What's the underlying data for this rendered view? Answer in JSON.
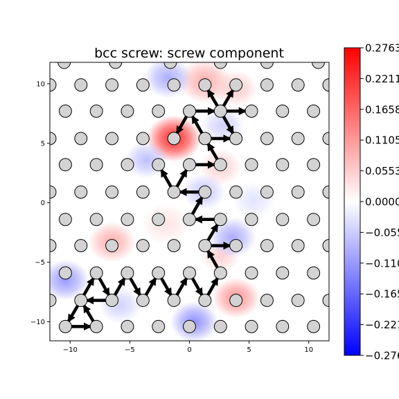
{
  "chart_data": {
    "type": "heatmap",
    "title": "bcc screw: screw component",
    "xlabel": "",
    "ylabel": "",
    "xlim": [
      -11.7,
      11.7
    ],
    "ylim": [
      -11.6,
      11.8
    ],
    "x_ticks": [
      -10,
      -5,
      0,
      5,
      10
    ],
    "y_ticks": [
      -10,
      -5,
      0,
      5,
      10
    ],
    "grid": false,
    "colorbar": {
      "cmap": "bwr",
      "range": [
        -0.2763,
        0.2763
      ],
      "tick_values": [
        0.2763,
        0.2211,
        0.1658,
        0.1105,
        0.0553,
        0.0,
        -0.0553,
        -0.1105,
        -0.1658,
        -0.2211,
        -0.2763
      ],
      "tick_labels": [
        "0.2763",
        "0.2211",
        "0.1658",
        "0.1105",
        "0.0553",
        "0.0000",
        "-0.055",
        "-0.110",
        "-0.165",
        "-0.221",
        "-0.276"
      ],
      "colors": {
        "max": "#ff0000",
        "mid": "#ffffff",
        "min": "#0000ff"
      }
    },
    "atoms": {
      "face_color": "#d3d3d3",
      "edge_color": "#000000",
      "rows": [
        {
          "y": 11.8,
          "x": [
            -10.5,
            -6.2,
            -1.6,
            2.6,
            6.5,
            10.8
          ]
        },
        {
          "y": 9.9,
          "x": [
            -11.7,
            -9.1,
            -6.5,
            -3.9,
            -1.3,
            1.3,
            3.9,
            6.5,
            9.1,
            11.7
          ]
        },
        {
          "y": 7.7,
          "x": [
            -10.4,
            -7.8,
            -5.2,
            -2.6,
            0.0,
            2.6,
            5.2,
            7.8,
            10.4
          ]
        },
        {
          "y": 5.4,
          "x": [
            -11.7,
            -9.1,
            -6.5,
            -3.9,
            -1.3,
            1.3,
            3.9,
            6.5,
            9.1,
            11.7
          ]
        },
        {
          "y": 3.2,
          "x": [
            -10.4,
            -7.8,
            -5.2,
            -2.6,
            0.0,
            2.6,
            5.2,
            7.8,
            10.4
          ]
        },
        {
          "y": 0.9,
          "x": [
            -11.7,
            -9.1,
            -6.5,
            -3.9,
            -1.3,
            1.3,
            3.9,
            6.5,
            9.1,
            11.7
          ]
        },
        {
          "y": -1.4,
          "x": [
            -10.4,
            -7.8,
            -5.2,
            -2.6,
            0.0,
            2.6,
            5.2,
            7.8,
            10.4
          ]
        },
        {
          "y": -3.6,
          "x": [
            -11.7,
            -9.1,
            -6.5,
            -3.9,
            -1.3,
            1.3,
            3.9,
            6.5,
            9.1,
            11.7
          ]
        },
        {
          "y": -5.9,
          "x": [
            -10.4,
            -7.8,
            -5.2,
            -2.6,
            0.0,
            2.6,
            5.2,
            7.8,
            10.4
          ]
        },
        {
          "y": -8.2,
          "x": [
            -11.7,
            -9.1,
            -6.5,
            -3.9,
            -1.3,
            1.3,
            3.9,
            6.5,
            9.1,
            11.7
          ]
        },
        {
          "y": -10.4,
          "x": [
            -10.4,
            -7.8,
            -5.2,
            -2.6,
            0.0,
            2.6,
            5.2,
            7.8,
            10.4
          ]
        }
      ]
    },
    "color_blobs": [
      {
        "x": -1.3,
        "y": 5.4,
        "value": 0.24,
        "r": 2.3
      },
      {
        "x": 1.3,
        "y": 10.2,
        "value": 0.09,
        "r": 2.2
      },
      {
        "x": 3.9,
        "y": 9.6,
        "value": 0.06,
        "r": 1.8
      },
      {
        "x": 2.6,
        "y": 3.0,
        "value": 0.05,
        "r": 1.8
      },
      {
        "x": -6.5,
        "y": -3.3,
        "value": 0.09,
        "r": 2.0
      },
      {
        "x": 3.9,
        "y": -8.0,
        "value": 0.12,
        "r": 2.0
      },
      {
        "x": 2.6,
        "y": -4.5,
        "value": 0.05,
        "r": 1.6
      },
      {
        "x": -2.0,
        "y": -1.8,
        "value": 0.03,
        "r": 2.0
      },
      {
        "x": -1.8,
        "y": 10.5,
        "value": -0.09,
        "r": 2.0
      },
      {
        "x": 2.8,
        "y": 6.5,
        "value": -0.05,
        "r": 1.8
      },
      {
        "x": -3.6,
        "y": 3.6,
        "value": -0.07,
        "r": 1.8
      },
      {
        "x": 1.2,
        "y": 0.9,
        "value": -0.06,
        "r": 1.8
      },
      {
        "x": 3.6,
        "y": -2.9,
        "value": -0.09,
        "r": 2.0
      },
      {
        "x": -10.4,
        "y": -6.5,
        "value": -0.11,
        "r": 2.0
      },
      {
        "x": 0.4,
        "y": -10.0,
        "value": -0.12,
        "r": 2.0
      },
      {
        "x": -5.8,
        "y": -8.6,
        "value": -0.05,
        "r": 1.8
      },
      {
        "x": 5.4,
        "y": 0.2,
        "value": -0.03,
        "r": 1.8
      }
    ],
    "arrows": [
      {
        "from": [
          -10.4,
          -10.4
        ],
        "to": [
          -7.8,
          -10.4
        ]
      },
      {
        "from": [
          -7.8,
          -10.4
        ],
        "to": [
          -9.1,
          -8.2
        ]
      },
      {
        "from": [
          -9.1,
          -8.2
        ],
        "to": [
          -7.8,
          -5.9
        ]
      },
      {
        "from": [
          -6.5,
          -8.2
        ],
        "to": [
          -9.1,
          -8.2
        ]
      },
      {
        "from": [
          -7.8,
          -5.9
        ],
        "to": [
          -6.5,
          -8.2
        ]
      },
      {
        "from": [
          -6.5,
          -8.2
        ],
        "to": [
          -5.2,
          -5.9
        ]
      },
      {
        "from": [
          -5.2,
          -5.9
        ],
        "to": [
          -3.9,
          -8.2
        ]
      },
      {
        "from": [
          -3.9,
          -8.2
        ],
        "to": [
          -2.6,
          -5.9
        ]
      },
      {
        "from": [
          -2.6,
          -5.9
        ],
        "to": [
          -1.3,
          -8.2
        ]
      },
      {
        "from": [
          -1.3,
          -8.2
        ],
        "to": [
          0.0,
          -5.9
        ]
      },
      {
        "from": [
          0.0,
          -5.9
        ],
        "to": [
          1.3,
          -8.2
        ]
      },
      {
        "from": [
          1.3,
          -8.2
        ],
        "to": [
          2.6,
          -5.9
        ]
      },
      {
        "from": [
          2.6,
          -5.9
        ],
        "to": [
          1.3,
          -3.6
        ]
      },
      {
        "from": [
          1.3,
          -3.6
        ],
        "to": [
          3.9,
          -3.6
        ]
      },
      {
        "from": [
          1.3,
          -3.6
        ],
        "to": [
          2.6,
          -1.4
        ]
      },
      {
        "from": [
          2.6,
          -1.4
        ],
        "to": [
          0.0,
          -1.4
        ]
      },
      {
        "from": [
          0.0,
          -1.4
        ],
        "to": [
          1.3,
          0.9
        ]
      },
      {
        "from": [
          1.3,
          0.9
        ],
        "to": [
          -1.3,
          0.9
        ]
      },
      {
        "from": [
          -1.3,
          0.9
        ],
        "to": [
          0.0,
          3.2
        ]
      },
      {
        "from": [
          0.0,
          3.2
        ],
        "to": [
          2.6,
          3.2
        ]
      },
      {
        "from": [
          2.6,
          3.2
        ],
        "to": [
          1.3,
          5.4
        ]
      },
      {
        "from": [
          1.3,
          5.4
        ],
        "to": [
          3.9,
          5.4
        ]
      },
      {
        "from": [
          1.3,
          5.4
        ],
        "to": [
          0.0,
          7.7
        ]
      },
      {
        "from": [
          0.0,
          7.7
        ],
        "to": [
          2.6,
          7.7
        ]
      },
      {
        "from": [
          2.6,
          7.7
        ],
        "to": [
          1.3,
          9.9
        ]
      },
      {
        "from": [
          2.6,
          7.7
        ],
        "to": [
          3.9,
          5.4
        ]
      },
      {
        "from": [
          2.6,
          7.7
        ],
        "to": [
          5.2,
          7.7
        ]
      },
      {
        "from": [
          2.6,
          7.7
        ],
        "to": [
          3.9,
          9.9
        ]
      },
      {
        "from": [
          0.0,
          7.7
        ],
        "to": [
          -1.3,
          5.4
        ]
      },
      {
        "from": [
          -1.3,
          0.9
        ],
        "to": [
          -2.6,
          3.2
        ]
      },
      {
        "from": [
          -9.1,
          -8.2
        ],
        "to": [
          -10.4,
          -10.4
        ]
      }
    ]
  }
}
